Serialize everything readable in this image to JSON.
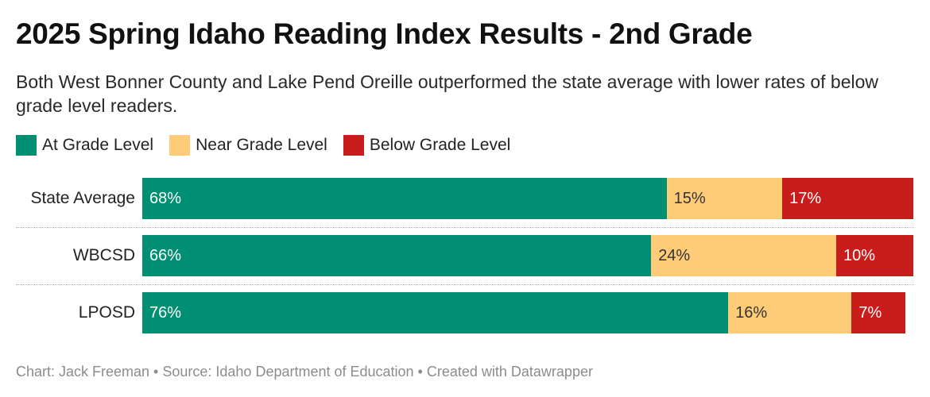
{
  "header": {
    "title": "2025 Spring Idaho Reading Index Results - 2nd Grade",
    "subtitle": "Both West Bonner County and Lake Pend Oreille outperformed the state average with lower rates of below grade level readers."
  },
  "colors": {
    "at": "#008f72",
    "near": "#fecc78",
    "below": "#c71e1d",
    "label_light": "#ffffff",
    "label_dark": "#333333"
  },
  "chart_data": {
    "type": "bar",
    "orientation": "horizontal",
    "stacked": true,
    "normalized_to": 100,
    "title": "2025 Spring Idaho Reading Index Results - 2nd Grade",
    "legend_position": "top-left",
    "categories": [
      "State Average",
      "WBCSD",
      "LPOSD"
    ],
    "series": [
      {
        "name": "At Grade Level",
        "key": "at",
        "values": [
          68,
          66,
          76
        ]
      },
      {
        "name": "Near Grade Level",
        "key": "near",
        "values": [
          15,
          24,
          16
        ]
      },
      {
        "name": "Below Grade Level",
        "key": "below",
        "values": [
          17,
          10,
          7
        ]
      }
    ],
    "data_labels": [
      [
        "68%",
        "15%",
        "17%"
      ],
      [
        "66%",
        "24%",
        "10%"
      ],
      [
        "76%",
        "16%",
        "7%"
      ]
    ]
  },
  "footer": {
    "credit": "Chart: Jack Freeman • Source: Idaho Department of Education • Created with Datawrapper"
  }
}
